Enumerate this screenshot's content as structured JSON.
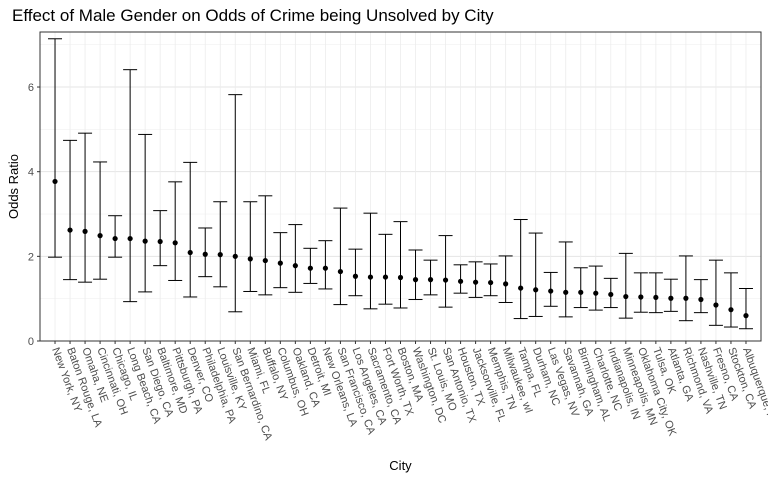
{
  "chart_data": {
    "type": "scatter",
    "title": "Effect of Male Gender on Odds of Crime being Unsolved by City",
    "xlabel": "City",
    "ylabel": "Odds Ratio",
    "ylim": [
      0,
      7.3
    ],
    "yticks": [
      0,
      2,
      4,
      6
    ],
    "grid": true,
    "error_bars": true,
    "cities": [
      "New York, NY",
      "Baton Rouge, LA",
      "Omaha, NE",
      "Cincinnati, OH",
      "Chicago, IL",
      "Long Beach, CA",
      "San Diego, CA",
      "Baltimore, MD",
      "Pittsburgh, PA",
      "Denver, CO",
      "Philadelphia, PA",
      "Louisville, KY",
      "San Bernardino, CA",
      "Miami, FL",
      "Buffalo, NY",
      "Columbus, OH",
      "Oakland, CA",
      "Detroit, MI",
      "New Orleans, LA",
      "San Francisco, CA",
      "Los Angeles, CA",
      "Sacramento, CA",
      "Fort Worth, TX",
      "Boston, MA",
      "Washington, DC",
      "St. Louis, MO",
      "San Antonio, TX",
      "Houston, TX",
      "Jacksonville, FL",
      "Memphis, TN",
      "Milwaukee, wI",
      "Tampa, FL",
      "Durham, NC",
      "Las Vegas, NV",
      "Savannah, GA",
      "Birmingham, AL",
      "Charlotte, NC",
      "Indianapolis, IN",
      "Minneapolis, MN",
      "Oklahoma City, OK",
      "Tulsa, OK",
      "Atlanta, GA",
      "Richmond, VA",
      "Nashville, TN",
      "Fresno, CA",
      "Stockton, CA",
      "Albuquerque, NM"
    ],
    "odds_ratio": [
      3.77,
      2.62,
      2.59,
      2.49,
      2.42,
      2.42,
      2.36,
      2.35,
      2.32,
      2.09,
      2.05,
      2.04,
      2.0,
      1.94,
      1.9,
      1.84,
      1.78,
      1.72,
      1.72,
      1.64,
      1.53,
      1.51,
      1.51,
      1.5,
      1.45,
      1.45,
      1.44,
      1.41,
      1.39,
      1.38,
      1.35,
      1.25,
      1.21,
      1.18,
      1.15,
      1.15,
      1.13,
      1.1,
      1.05,
      1.04,
      1.03,
      1.01,
      1.01,
      0.98,
      0.85,
      0.74,
      0.6
    ],
    "ci_lower": [
      1.98,
      1.45,
      1.39,
      1.46,
      1.98,
      0.93,
      1.16,
      1.78,
      1.43,
      1.04,
      1.52,
      1.28,
      0.69,
      1.17,
      1.09,
      1.26,
      1.15,
      1.36,
      1.23,
      0.86,
      1.07,
      0.76,
      0.87,
      0.78,
      0.98,
      1.09,
      0.8,
      1.13,
      1.03,
      1.07,
      0.91,
      0.53,
      0.58,
      0.82,
      0.57,
      0.79,
      0.73,
      0.79,
      0.54,
      0.68,
      0.67,
      0.7,
      0.48,
      0.67,
      0.37,
      0.33,
      0.29
    ],
    "ci_upper": [
      7.14,
      4.74,
      4.91,
      4.23,
      2.96,
      6.41,
      4.88,
      3.08,
      3.76,
      4.22,
      2.67,
      3.29,
      5.82,
      3.29,
      3.43,
      2.56,
      2.75,
      2.19,
      2.37,
      3.14,
      2.17,
      3.02,
      2.52,
      2.82,
      2.15,
      1.91,
      2.49,
      1.8,
      1.87,
      1.82,
      2.01,
      2.87,
      2.55,
      1.62,
      2.34,
      1.73,
      1.77,
      1.48,
      2.07,
      1.61,
      1.61,
      1.46,
      2.01,
      1.45,
      1.91,
      1.61,
      1.24
    ]
  }
}
